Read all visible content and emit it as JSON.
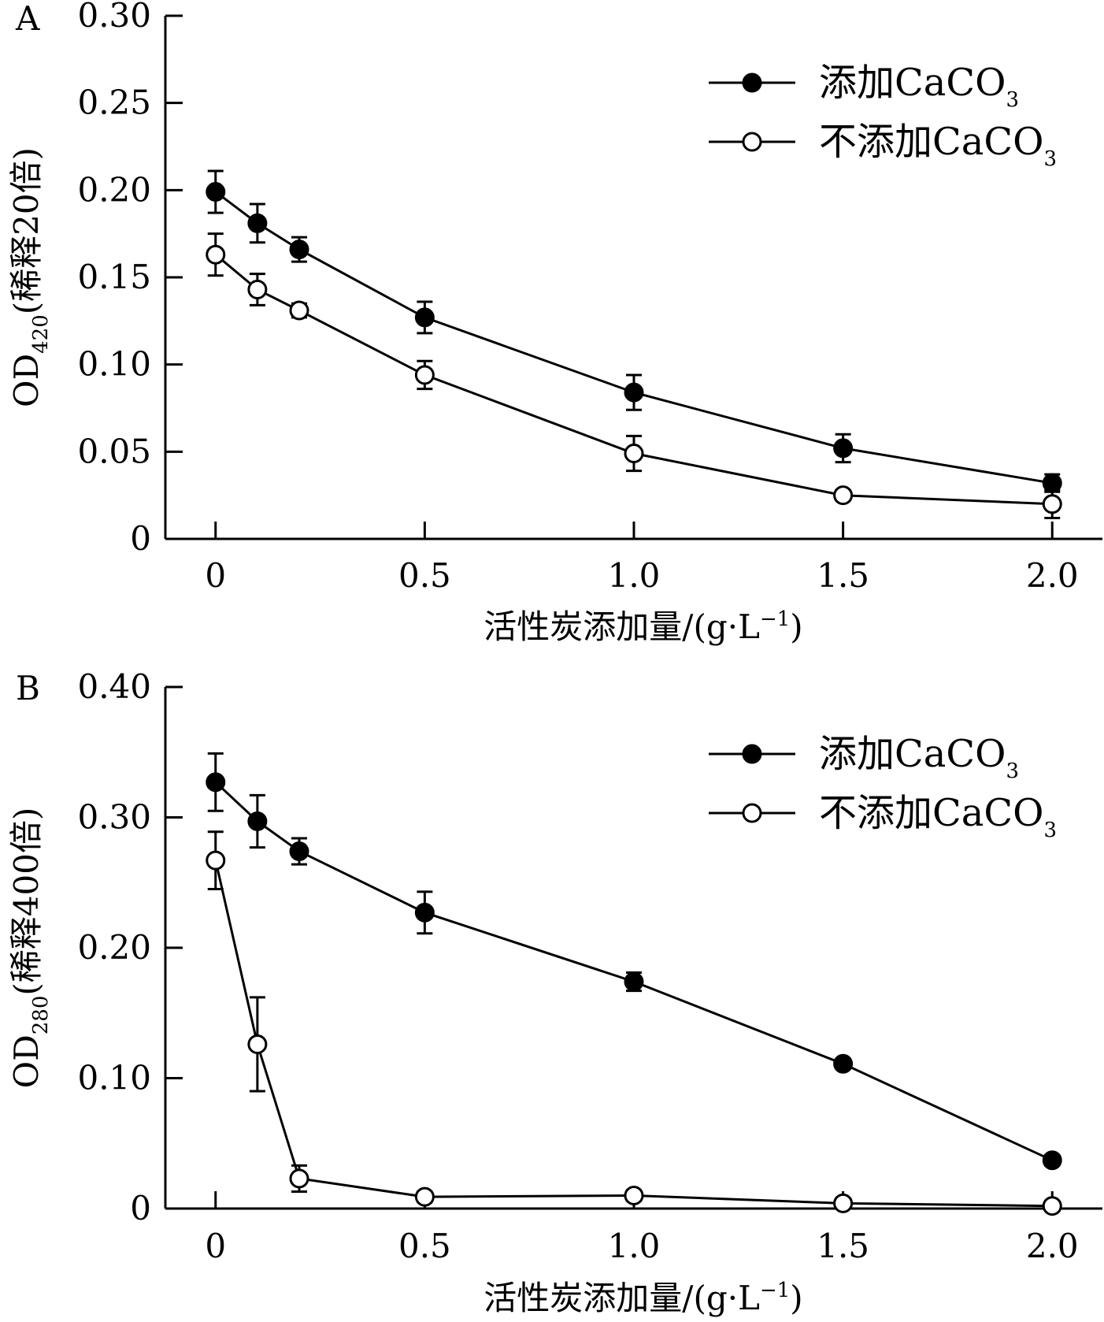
{
  "chart_data": [
    {
      "panel": "A",
      "type": "line",
      "xlabel": "活性炭添加量/(g·L",
      "xlabel_sup": "−1",
      "xlabel_tail": ")",
      "ylabel": "OD",
      "ylabel_sub": "420",
      "ylabel_tail": "(稀释20倍)",
      "x_ticks": [
        "0",
        "0.5",
        "1.0",
        "1.5",
        "2.0"
      ],
      "y_ticks": [
        "0",
        "0.05",
        "0.10",
        "0.15",
        "0.20",
        "0.25",
        "0.30"
      ],
      "xlim": [
        -0.12,
        2.12
      ],
      "ylim": [
        0,
        0.3
      ],
      "legend_position": "top-right",
      "series": [
        {
          "name": "添加CaCO",
          "name_sub": "3",
          "marker": "filled-circle",
          "x": [
            0,
            0.1,
            0.2,
            0.5,
            1.0,
            1.5,
            2.0
          ],
          "y": [
            0.199,
            0.181,
            0.166,
            0.127,
            0.084,
            0.052,
            0.032
          ],
          "err": [
            0.012,
            0.011,
            0.007,
            0.009,
            0.01,
            0.008,
            0.005
          ]
        },
        {
          "name": "不添加CaCO",
          "name_sub": "3",
          "marker": "open-circle",
          "x": [
            0,
            0.1,
            0.2,
            0.5,
            1.0,
            1.5,
            2.0
          ],
          "y": [
            0.163,
            0.143,
            0.131,
            0.094,
            0.049,
            0.025,
            0.02
          ],
          "err": [
            0.012,
            0.009,
            0.004,
            0.008,
            0.01,
            0.003,
            0.008
          ]
        }
      ]
    },
    {
      "panel": "B",
      "type": "line",
      "xlabel": "活性炭添加量/(g·L",
      "xlabel_sup": "−1",
      "xlabel_tail": ")",
      "ylabel": "OD",
      "ylabel_sub": "280",
      "ylabel_tail": "(稀释400倍)",
      "x_ticks": [
        "0",
        "0.5",
        "1.0",
        "1.5",
        "2.0"
      ],
      "y_ticks": [
        "0",
        "0.10",
        "0.20",
        "0.30",
        "0.40"
      ],
      "xlim": [
        -0.12,
        2.12
      ],
      "ylim": [
        0,
        0.4
      ],
      "legend_position": "top-right",
      "series": [
        {
          "name": "添加CaCO",
          "name_sub": "3",
          "marker": "filled-circle",
          "x": [
            0,
            0.1,
            0.2,
            0.5,
            1.0,
            1.5,
            2.0
          ],
          "y": [
            0.327,
            0.297,
            0.274,
            0.227,
            0.174,
            0.111,
            0.037
          ],
          "err": [
            0.022,
            0.02,
            0.01,
            0.016,
            0.007,
            0.004,
            0.004
          ]
        },
        {
          "name": "不添加CaCO",
          "name_sub": "3",
          "marker": "open-circle",
          "x": [
            0,
            0.1,
            0.2,
            0.5,
            1.0,
            1.5,
            2.0
          ],
          "y": [
            0.267,
            0.126,
            0.023,
            0.009,
            0.01,
            0.004,
            0.002
          ],
          "err": [
            0.022,
            0.036,
            0.01,
            0.004,
            0.004,
            0.002,
            0.002
          ]
        }
      ]
    }
  ]
}
